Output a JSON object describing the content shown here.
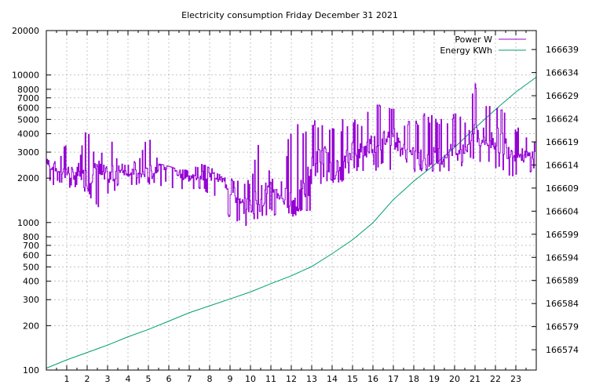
{
  "chart_data": {
    "type": "line",
    "title": "Electricity consumption Friday December 31 2021",
    "xlabel": "",
    "ylabel": "",
    "y2label": "",
    "x_ticks": [
      "1",
      "2",
      "3",
      "4",
      "5",
      "6",
      "7",
      "8",
      "9",
      "10",
      "11",
      "12",
      "13",
      "14",
      "15",
      "16",
      "17",
      "18",
      "19",
      "20",
      "21",
      "22",
      "23"
    ],
    "xlim": [
      0,
      24
    ],
    "y_ticks": [
      "100",
      "200",
      "300",
      "400",
      "500",
      "600",
      "700",
      "800",
      "1000",
      "2000",
      "3000",
      "4000",
      "5000",
      "6000",
      "7000",
      "8000",
      "10000",
      "20000"
    ],
    "y_tick_values": [
      100,
      200,
      300,
      400,
      500,
      600,
      700,
      800,
      1000,
      2000,
      3000,
      4000,
      5000,
      6000,
      7000,
      8000,
      10000,
      20000
    ],
    "ylim": [
      100,
      20000
    ],
    "y_scale": "log",
    "y2_ticks": [
      "166574",
      "166579",
      "166584",
      "166589",
      "166594",
      "166599",
      "166604",
      "166609",
      "166614",
      "166619",
      "166624",
      "166629",
      "166634",
      "166639"
    ],
    "y2_tick_values": [
      166574,
      166579,
      166584,
      166589,
      166594,
      166599,
      166604,
      166609,
      166614,
      166619,
      166624,
      166629,
      166634,
      166639
    ],
    "y2lim": [
      166569.6,
      166643.1
    ],
    "grid": true,
    "legend_position": "top-right",
    "series": [
      {
        "name": "Power W",
        "axis": "y",
        "color": "#9400d3",
        "x": [
          0,
          0.5,
          1,
          1.5,
          2,
          2.5,
          3,
          3.5,
          4,
          4.5,
          5,
          5.5,
          6,
          6.5,
          7,
          7.5,
          8,
          8.5,
          9,
          9.5,
          10,
          10.5,
          11,
          11.5,
          12,
          12.5,
          13,
          13.5,
          14,
          14.5,
          15,
          15.5,
          16,
          16.5,
          17,
          17.5,
          18,
          18.5,
          19,
          19.5,
          20,
          20.5,
          21,
          21.5,
          22,
          22.5,
          23,
          23.5,
          24
        ],
        "values": [
          2500,
          2300,
          2200,
          2100,
          2000,
          2300,
          1900,
          2300,
          2200,
          2100,
          2100,
          2400,
          2400,
          2100,
          2000,
          2100,
          2100,
          2000,
          1700,
          1300,
          1300,
          1500,
          1700,
          1500,
          1400,
          1500,
          2200,
          3000,
          2300,
          2300,
          3200,
          3000,
          3500,
          3700,
          3800,
          3000,
          2800,
          2700,
          2800,
          2900,
          3000,
          3200,
          4100,
          3600,
          3700,
          3300,
          2900,
          2800,
          2900
        ],
        "max_envelope": [
          2700,
          2600,
          3600,
          2400,
          4500,
          2400,
          4500,
          2500,
          2500,
          2700,
          4000,
          2500,
          2400,
          2300,
          2300,
          2500,
          2400,
          2100,
          2000,
          1900,
          2000,
          4000,
          2000,
          2000,
          4500,
          5200,
          5200,
          5000,
          4500,
          5000,
          5000,
          5000,
          7000,
          6000,
          6000,
          5000,
          5000,
          5500,
          5500,
          5000,
          5500,
          5000,
          9000,
          6500,
          7000,
          6000,
          4500,
          4000,
          3500
        ],
        "min_envelope": [
          1800,
          1800,
          1700,
          1700,
          1600,
          1200,
          1300,
          1700,
          1700,
          1800,
          1800,
          1800,
          1700,
          1600,
          1600,
          1600,
          1500,
          1500,
          1000,
          950,
          950,
          1100,
          1100,
          1100,
          1100,
          1100,
          1200,
          1800,
          1800,
          1800,
          2200,
          2200,
          2200,
          2200,
          2300,
          2200,
          2200,
          2200,
          2200,
          2200,
          2300,
          2400,
          2500,
          2300,
          2300,
          2000,
          2100,
          2200,
          2200
        ]
      },
      {
        "name": "Energy KWh",
        "axis": "y2",
        "color": "#009e73",
        "x": [
          0,
          1,
          2,
          3,
          4,
          5,
          6,
          7,
          8,
          9,
          10,
          11,
          12,
          13,
          14,
          15,
          16,
          17,
          18,
          19,
          20,
          21,
          22,
          23,
          24
        ],
        "values": [
          166570.0,
          166571.8,
          166573.4,
          166575.0,
          166576.8,
          166578.4,
          166580.2,
          166582.0,
          166583.5,
          166585.0,
          166586.5,
          166588.3,
          166590.0,
          166592.0,
          166594.8,
          166597.8,
          166601.5,
          166606.5,
          166610.5,
          166614.0,
          166617.8,
          166622.0,
          166626.0,
          166629.8,
          166633.0
        ]
      }
    ]
  }
}
